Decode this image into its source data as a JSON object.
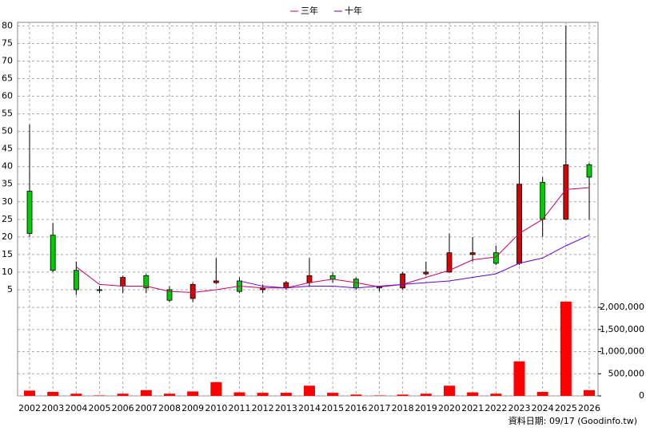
{
  "chart_data": {
    "type": "candlestick",
    "categories": [
      "2002",
      "2003",
      "2004",
      "2005",
      "2006",
      "2007",
      "2008",
      "2009",
      "2010",
      "2011",
      "2012",
      "2013",
      "2014",
      "2015",
      "2016",
      "2017",
      "2018",
      "2019",
      "2020",
      "2021",
      "2022",
      "2023",
      "2024",
      "2025",
      "2026"
    ],
    "open": [
      33,
      20.5,
      10.5,
      5,
      6,
      9,
      5,
      2.5,
      7,
      7.5,
      5,
      5.5,
      7,
      9,
      8,
      5.8,
      5.5,
      9.5,
      10,
      15,
      15.5,
      12.5,
      35.5,
      25,
      40.5
    ],
    "high": [
      52,
      24,
      13,
      6,
      9,
      9.5,
      6,
      7,
      14,
      8.5,
      6.5,
      7.5,
      14,
      10,
      8.5,
      6,
      10,
      13,
      21,
      20,
      17.5,
      56,
      37,
      80,
      41
    ],
    "low": [
      20,
      10,
      3.5,
      4,
      4,
      4,
      1.5,
      1.5,
      6.5,
      4,
      4,
      5,
      6,
      7,
      5,
      4.5,
      5,
      9,
      10,
      13,
      12,
      12,
      20,
      25,
      25
    ],
    "close": [
      21,
      10.5,
      5,
      4.8,
      8.5,
      5.5,
      2,
      6.5,
      7.5,
      4.5,
      5.5,
      7,
      9,
      8,
      5.5,
      5.5,
      9.5,
      10,
      15.5,
      15.5,
      12.5,
      35,
      25,
      40.5,
      37
    ],
    "up_color": "#dd0000",
    "down_color": "#00cc00",
    "series": [
      {
        "name": "三年",
        "color": "#cc0066",
        "values": [
          null,
          null,
          11.5,
          6.5,
          6,
          6,
          4.5,
          4.2,
          5,
          6,
          5.5,
          5.5,
          7,
          8,
          7,
          5.8,
          6.5,
          8.5,
          10.5,
          13.5,
          14.3,
          21,
          25,
          33.5,
          34
        ]
      },
      {
        "name": "十年",
        "color": "#6600cc",
        "values": [
          null,
          null,
          null,
          null,
          null,
          null,
          null,
          null,
          null,
          7.5,
          6,
          5.5,
          6,
          6,
          5.5,
          6,
          6.5,
          7,
          7.5,
          8.5,
          9.5,
          12.5,
          14,
          17.5,
          20.5
        ]
      }
    ],
    "volume": {
      "color": "#ff0000",
      "axis": "y2",
      "values": [
        120000,
        90000,
        50000,
        10000,
        50000,
        130000,
        50000,
        100000,
        310000,
        80000,
        70000,
        70000,
        230000,
        70000,
        30000,
        10000,
        30000,
        50000,
        230000,
        80000,
        50000,
        780000,
        90000,
        2130000,
        130000
      ]
    },
    "ylim": [
      0,
      81
    ],
    "yticks": [
      5,
      10,
      15,
      20,
      25,
      30,
      35,
      40,
      45,
      50,
      55,
      60,
      65,
      70,
      75,
      80
    ],
    "y2lim": [
      0,
      2200000
    ],
    "y2ticks": [
      0,
      {
        "value": 500000,
        "label": "500,000"
      },
      {
        "value": 1000000,
        "label": "1,000,000"
      },
      {
        "value": 1500000,
        "label": "1,500,000"
      },
      {
        "value": 2000000,
        "label": "2,000,000"
      }
    ],
    "grid": true,
    "legend": "top",
    "footer": "資料日期: 09/17  (Goodinfo.tw)"
  }
}
